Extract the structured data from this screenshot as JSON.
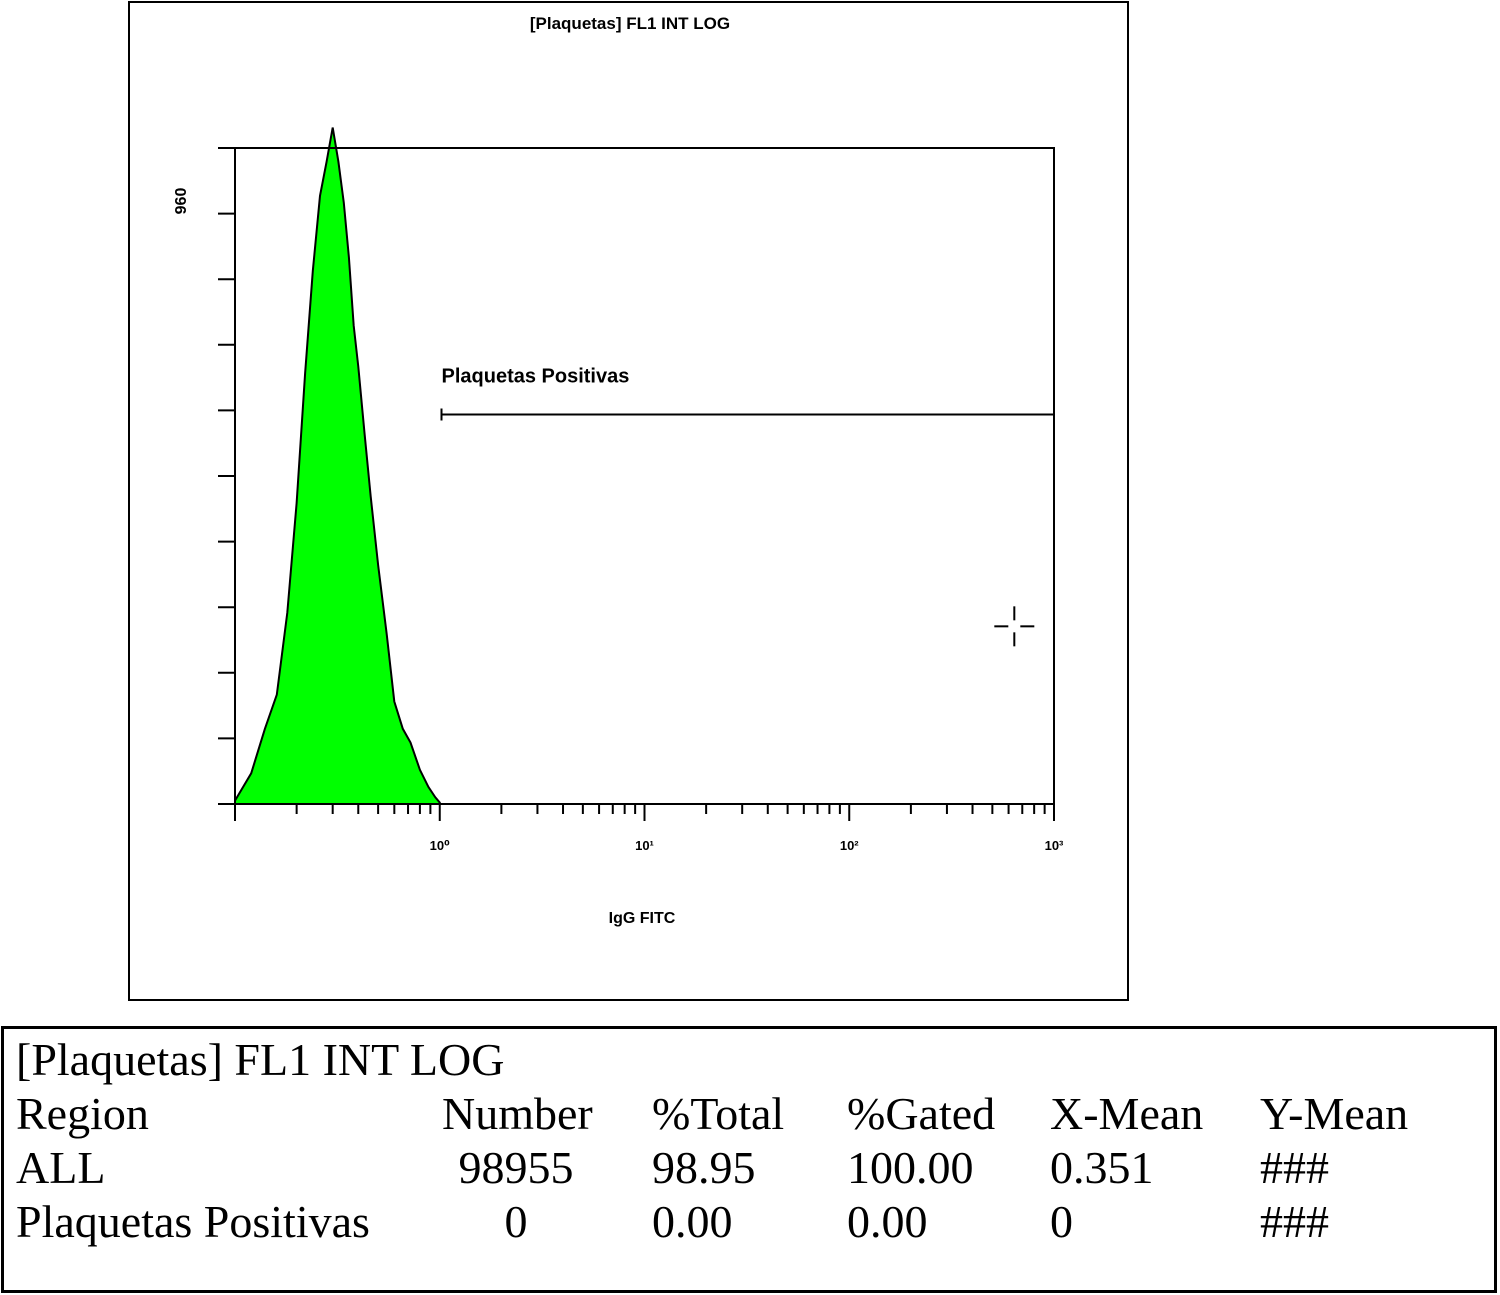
{
  "chart_data": {
    "type": "area",
    "title": "[Plaquetas] FL1 INT LOG",
    "xlabel": "IgG FITC",
    "ylabel": "960",
    "x_scale": "log",
    "xlim": [
      0.1,
      1000
    ],
    "ylim": [
      0,
      960
    ],
    "x_tick_labels": [
      {
        "value": 1,
        "label": "10⁰"
      },
      {
        "value": 10,
        "label": "10¹"
      },
      {
        "value": 100,
        "label": "10²"
      },
      {
        "value": 1000,
        "label": "10³"
      }
    ],
    "y_minor_ticks": [
      96,
      192,
      288,
      384,
      480,
      576,
      672,
      768,
      864,
      960
    ],
    "series": [
      {
        "color": "#00ff00",
        "x": [
          0.1,
          0.12,
          0.14,
          0.16,
          0.18,
          0.2,
          0.22,
          0.24,
          0.26,
          0.28,
          0.3,
          0.32,
          0.34,
          0.36,
          0.38,
          0.4,
          0.43,
          0.46,
          0.5,
          0.55,
          0.6,
          0.66,
          0.72,
          0.8,
          0.88,
          0.95,
          1.0
        ],
        "y": [
          5,
          45,
          110,
          160,
          280,
          440,
          630,
          780,
          890,
          940,
          990,
          940,
          880,
          800,
          700,
          640,
          540,
          450,
          350,
          250,
          150,
          110,
          90,
          50,
          25,
          10,
          2
        ]
      }
    ],
    "annotations": [
      {
        "label": "Plaquetas Positivas",
        "x_start": 1.02,
        "x_end": 1000,
        "y": 570
      }
    ],
    "cursor": {
      "x": 640,
      "y": 260
    }
  },
  "stats": {
    "title": "[Plaquetas] FL1 INT LOG",
    "headers": [
      "Region",
      "Number",
      "%Total",
      "%Gated",
      "X-Mean",
      "Y-Mean"
    ],
    "rows": [
      [
        "ALL",
        "98955",
        "98.95",
        "100.00",
        "0.351",
        "###"
      ],
      [
        "Plaquetas Positivas",
        "0",
        "0.00",
        "0.00",
        "0",
        "###"
      ]
    ]
  }
}
